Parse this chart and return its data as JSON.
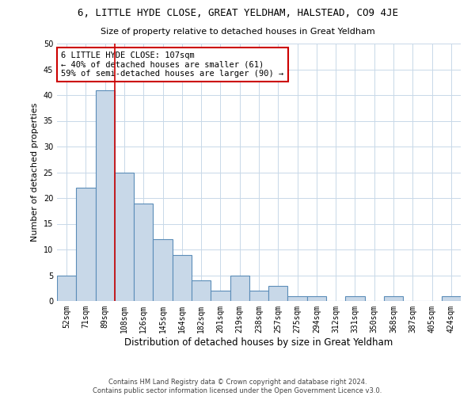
{
  "title": "6, LITTLE HYDE CLOSE, GREAT YELDHAM, HALSTEAD, CO9 4JE",
  "subtitle": "Size of property relative to detached houses in Great Yeldham",
  "xlabel": "Distribution of detached houses by size in Great Yeldham",
  "ylabel": "Number of detached properties",
  "categories": [
    "52sqm",
    "71sqm",
    "89sqm",
    "108sqm",
    "126sqm",
    "145sqm",
    "164sqm",
    "182sqm",
    "201sqm",
    "219sqm",
    "238sqm",
    "257sqm",
    "275sqm",
    "294sqm",
    "312sqm",
    "331sqm",
    "350sqm",
    "368sqm",
    "387sqm",
    "405sqm",
    "424sqm"
  ],
  "values": [
    5,
    22,
    41,
    25,
    19,
    12,
    9,
    4,
    2,
    5,
    2,
    3,
    1,
    1,
    0,
    1,
    0,
    1,
    0,
    0,
    1
  ],
  "bar_color": "#c8d8e8",
  "bar_edge_color": "#5b8db8",
  "property_line_color": "#cc0000",
  "annotation_text": "6 LITTLE HYDE CLOSE: 107sqm\n← 40% of detached houses are smaller (61)\n59% of semi-detached houses are larger (90) →",
  "annotation_box_color": "#cc0000",
  "ylim": [
    0,
    50
  ],
  "yticks": [
    0,
    5,
    10,
    15,
    20,
    25,
    30,
    35,
    40,
    45,
    50
  ],
  "footer": "Contains HM Land Registry data © Crown copyright and database right 2024.\nContains public sector information licensed under the Open Government Licence v3.0.",
  "bg_color": "#ffffff",
  "grid_color": "#c8d8e8",
  "title_fontsize": 9,
  "subtitle_fontsize": 8,
  "xlabel_fontsize": 8.5,
  "ylabel_fontsize": 8,
  "tick_fontsize": 7,
  "annotation_fontsize": 7.5,
  "footer_fontsize": 6
}
